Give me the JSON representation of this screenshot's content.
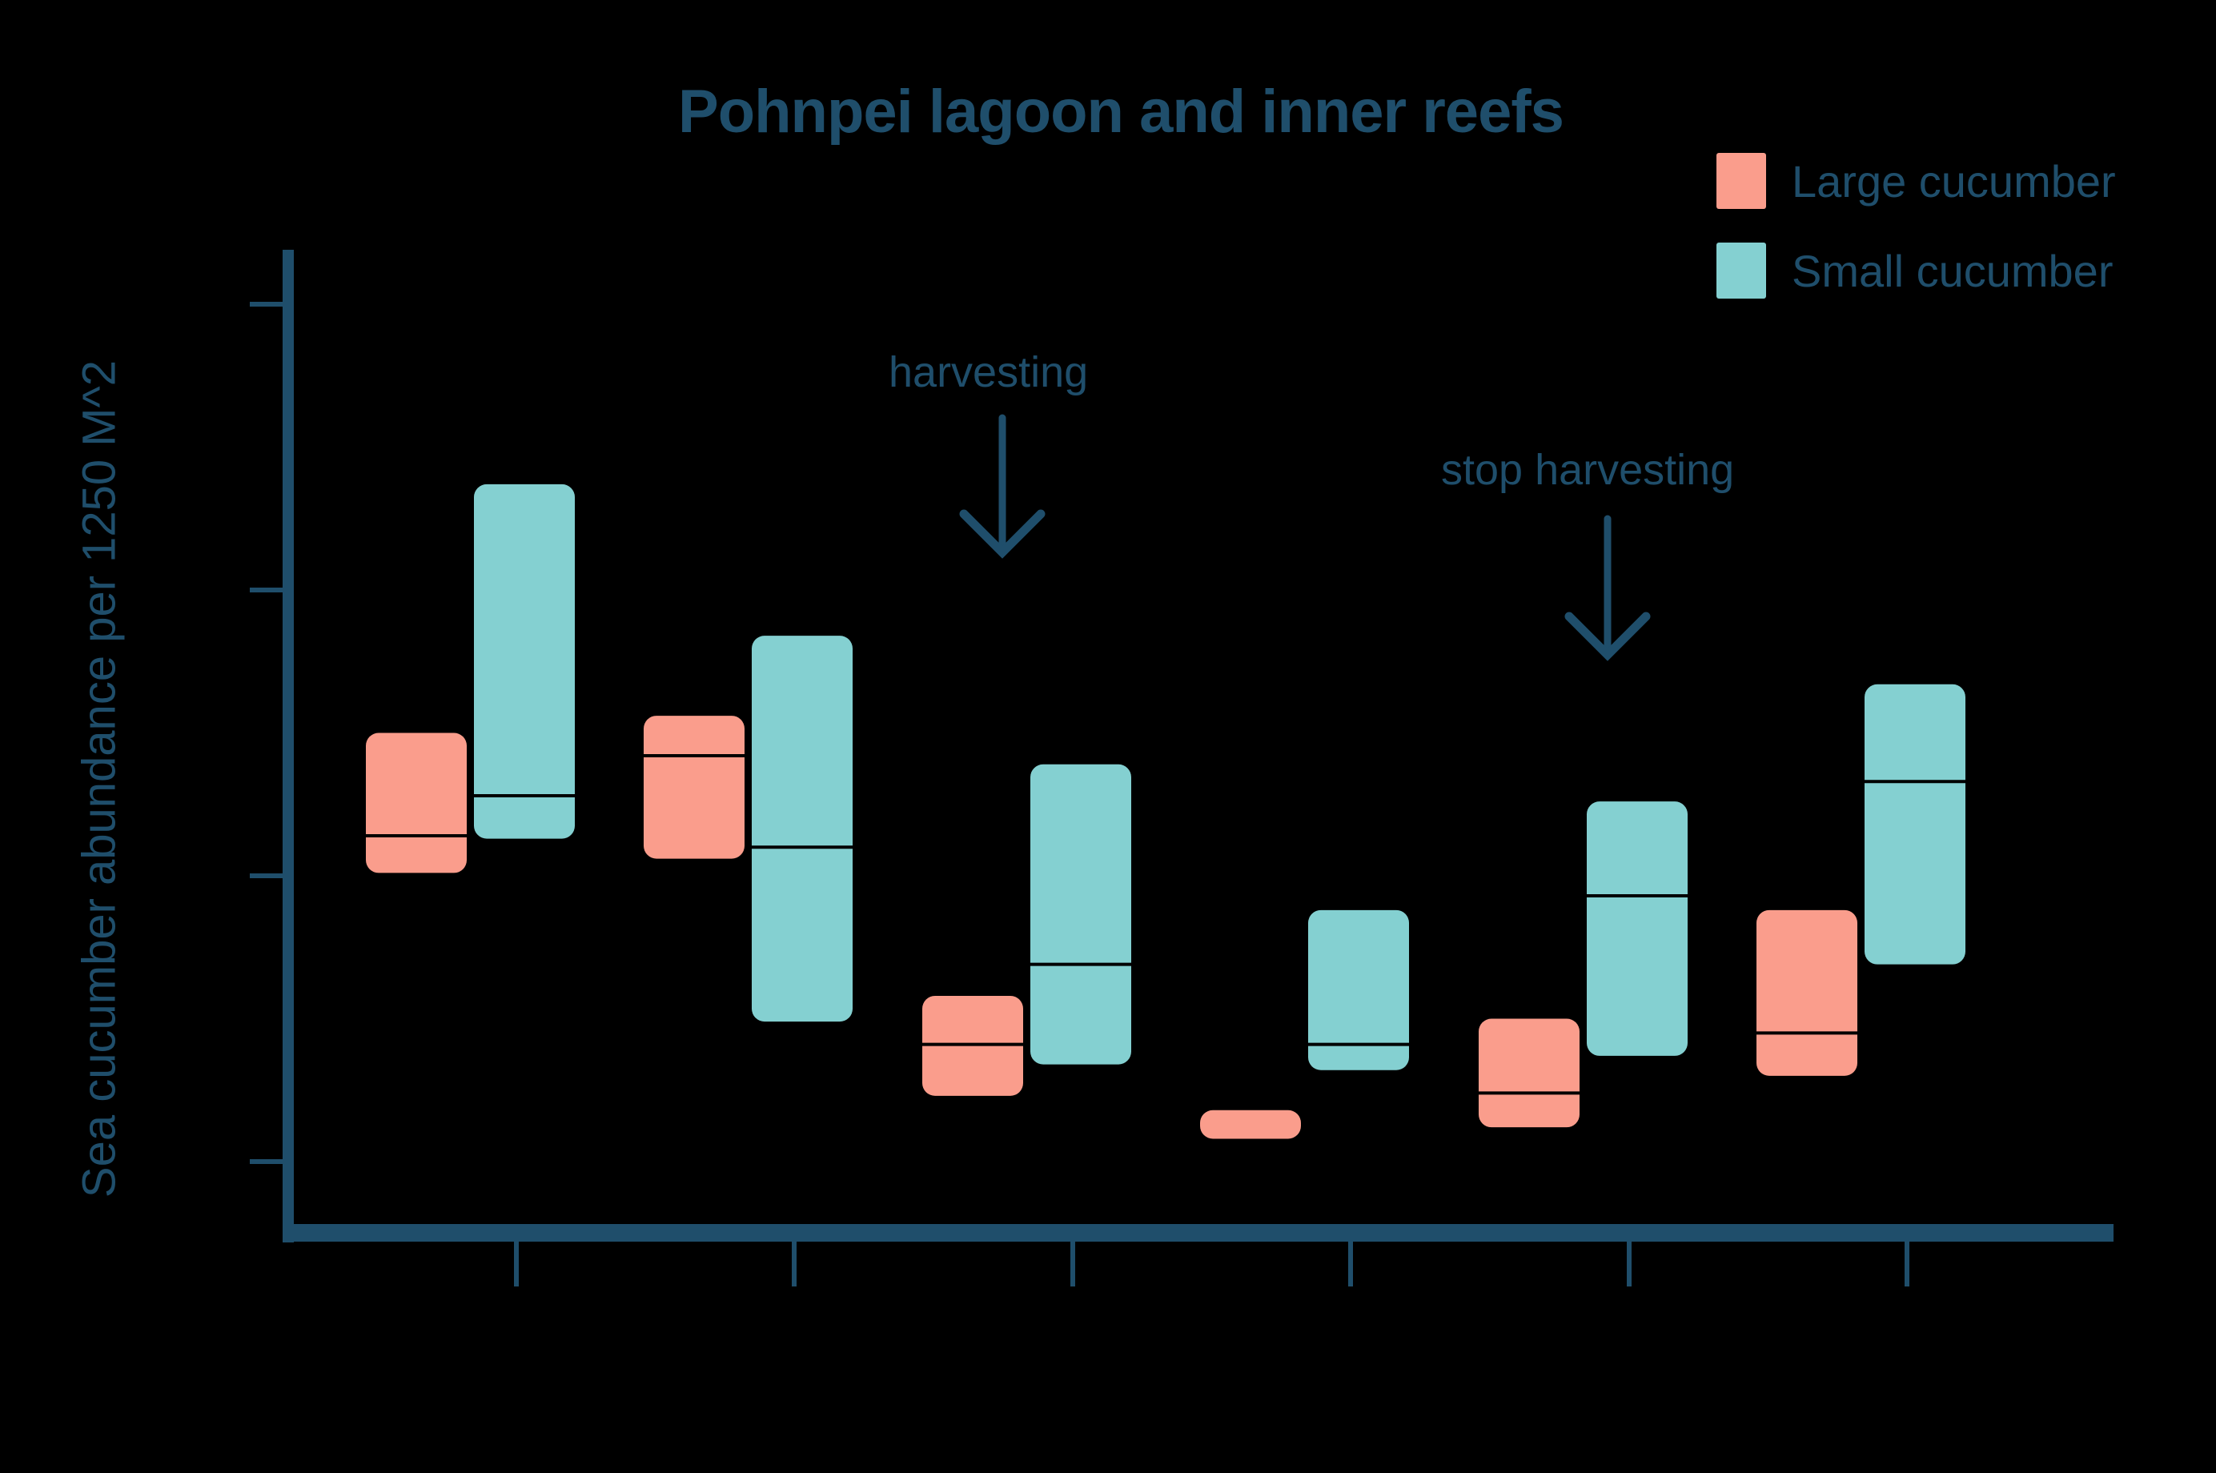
{
  "chart_data": {
    "type": "boxplot",
    "title": "Pohnpei lagoon and inner reefs",
    "xlabel": "",
    "ylabel": "Sea cucumber abundance per 1250 M^2",
    "y_tick_labels_visible": false,
    "x_tick_labels_visible": false,
    "y_ticks": [
      0,
      10,
      20,
      30
    ],
    "ylim": [
      -2.5,
      31.9
    ],
    "categories": [
      "1",
      "2",
      "3",
      "4",
      "5",
      "6"
    ],
    "legend_position": "top-right",
    "grid": false,
    "series": [
      {
        "name": "Large cucumber",
        "color": "#fa9d8c",
        "boxes": [
          {
            "q1": 10.1,
            "median": 11.4,
            "q3": 15.0
          },
          {
            "q1": 10.6,
            "median": 14.2,
            "q3": 15.6
          },
          {
            "q1": 2.3,
            "median": 4.1,
            "q3": 5.8
          },
          {
            "q1": 0.8,
            "median": 0.8,
            "q3": 1.8
          },
          {
            "q1": 1.2,
            "median": 2.4,
            "q3": 5.0
          },
          {
            "q1": 3.0,
            "median": 4.5,
            "q3": 8.8
          }
        ]
      },
      {
        "name": "Small cucumber",
        "color": "#84d0d1",
        "boxes": [
          {
            "q1": 11.3,
            "median": 12.8,
            "q3": 23.7
          },
          {
            "q1": 4.9,
            "median": 11.0,
            "q3": 18.4
          },
          {
            "q1": 3.4,
            "median": 6.9,
            "q3": 13.9
          },
          {
            "q1": 3.2,
            "median": 4.1,
            "q3": 8.8
          },
          {
            "q1": 3.7,
            "median": 9.3,
            "q3": 12.6
          },
          {
            "q1": 6.9,
            "median": 13.3,
            "q3": 16.7
          }
        ]
      }
    ],
    "annotations": [
      {
        "text": "harvesting",
        "points_to_category": "3",
        "arrow": "down"
      },
      {
        "text": "stop harvesting",
        "points_to_category": "5",
        "arrow": "down"
      }
    ]
  },
  "colors": {
    "axis": "#1f4e6b",
    "text": "#1f4e6b",
    "background": "#000000",
    "median_line": "#000000"
  },
  "legend": {
    "items": [
      {
        "label": "Large cucumber",
        "color": "#fa9d8c"
      },
      {
        "label": "Small cucumber",
        "color": "#84d0d1"
      }
    ]
  },
  "annotations": {
    "harvesting": "harvesting",
    "stop_harvesting": "stop harvesting"
  }
}
